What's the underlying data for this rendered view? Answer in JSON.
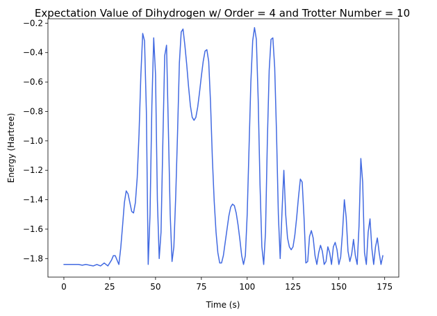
{
  "chart_data": {
    "type": "line",
    "title": "Expectation Value of Dihydrogen w/ Order = 4 and Trotter Number = 10",
    "xlabel": "Time (s)",
    "ylabel": "Energy (Hartree)",
    "xlim": [
      -8.7,
      182.7
    ],
    "ylim": [
      -1.926,
      -0.17
    ],
    "xticks": [
      0,
      25,
      50,
      75,
      100,
      125,
      150,
      175
    ],
    "xtick_labels": [
      "0",
      "25",
      "50",
      "75",
      "100",
      "125",
      "150",
      "175"
    ],
    "yticks": [
      -1.8,
      -1.6,
      -1.4,
      -1.2,
      -1.0,
      -0.8,
      -0.6,
      -0.4,
      -0.2
    ],
    "ytick_labels": [
      "−1.8",
      "−1.6",
      "−1.4",
      "−1.2",
      "−1.0",
      "−0.8",
      "−0.6",
      "−0.4",
      "−0.2"
    ],
    "grid": false,
    "series": [
      {
        "color": "#4169e1",
        "x": [
          0,
          5,
          8,
          10,
          12,
          14,
          16,
          18,
          20,
          22,
          24,
          26,
          27,
          28,
          29,
          30,
          31,
          32,
          33,
          34,
          35,
          36,
          37,
          38,
          39,
          40,
          41,
          42,
          43,
          44,
          45,
          46,
          47,
          48,
          49,
          50,
          51,
          52,
          53,
          54,
          55,
          56,
          57,
          58,
          59,
          60,
          61,
          62,
          63,
          64,
          65,
          66,
          67,
          68,
          69,
          70,
          71,
          72,
          73,
          74,
          75,
          76,
          77,
          78,
          79,
          80,
          81,
          82,
          83,
          84,
          85,
          86,
          87,
          88,
          89,
          90,
          91,
          92,
          93,
          94,
          95,
          96,
          97,
          98,
          99,
          100,
          101,
          102,
          103,
          104,
          105,
          106,
          107,
          108,
          109,
          110,
          111,
          112,
          113,
          114,
          115,
          116,
          117,
          118,
          119,
          120,
          121,
          122,
          123,
          124,
          125,
          126,
          127,
          128,
          129,
          130,
          131,
          132,
          133,
          134,
          135,
          136,
          137,
          138,
          139,
          140,
          141,
          142,
          143,
          144,
          145,
          146,
          147,
          148,
          149,
          150,
          151,
          152,
          153,
          154,
          155,
          156,
          157,
          158,
          159,
          160,
          161,
          162,
          163,
          164,
          165,
          166,
          167,
          168,
          169,
          170,
          171,
          172,
          173,
          174
        ],
        "y": [
          -1.84,
          -1.84,
          -1.84,
          -1.845,
          -1.84,
          -1.845,
          -1.85,
          -1.84,
          -1.85,
          -1.83,
          -1.85,
          -1.81,
          -1.78,
          -1.78,
          -1.81,
          -1.84,
          -1.73,
          -1.58,
          -1.42,
          -1.34,
          -1.36,
          -1.42,
          -1.48,
          -1.49,
          -1.42,
          -1.25,
          -0.95,
          -0.55,
          -0.27,
          -0.32,
          -0.8,
          -1.84,
          -1.5,
          -0.76,
          -0.3,
          -0.55,
          -1.4,
          -1.8,
          -1.62,
          -1.0,
          -0.42,
          -0.35,
          -0.92,
          -1.5,
          -1.82,
          -1.72,
          -1.38,
          -0.95,
          -0.47,
          -0.26,
          -0.24,
          -0.35,
          -0.48,
          -0.63,
          -0.76,
          -0.84,
          -0.86,
          -0.84,
          -0.77,
          -0.67,
          -0.56,
          -0.46,
          -0.39,
          -0.38,
          -0.46,
          -0.74,
          -1.12,
          -1.41,
          -1.62,
          -1.76,
          -1.83,
          -1.83,
          -1.78,
          -1.69,
          -1.6,
          -1.51,
          -1.45,
          -1.43,
          -1.44,
          -1.49,
          -1.57,
          -1.67,
          -1.78,
          -1.84,
          -1.78,
          -1.5,
          -1.05,
          -0.6,
          -0.32,
          -0.23,
          -0.31,
          -0.72,
          -1.3,
          -1.72,
          -1.84,
          -1.62,
          -1.0,
          -0.52,
          -0.31,
          -0.3,
          -0.5,
          -0.95,
          -1.5,
          -1.8,
          -1.48,
          -1.2,
          -1.5,
          -1.66,
          -1.72,
          -1.74,
          -1.72,
          -1.64,
          -1.52,
          -1.38,
          -1.26,
          -1.28,
          -1.52,
          -1.83,
          -1.82,
          -1.65,
          -1.61,
          -1.66,
          -1.78,
          -1.84,
          -1.76,
          -1.71,
          -1.75,
          -1.84,
          -1.82,
          -1.72,
          -1.76,
          -1.84,
          -1.72,
          -1.69,
          -1.74,
          -1.84,
          -1.79,
          -1.62,
          -1.4,
          -1.52,
          -1.75,
          -1.82,
          -1.77,
          -1.67,
          -1.78,
          -1.84,
          -1.58,
          -1.12,
          -1.28,
          -1.76,
          -1.84,
          -1.62,
          -1.53,
          -1.73,
          -1.84,
          -1.72,
          -1.66,
          -1.76,
          -1.84,
          -1.78
        ]
      }
    ]
  }
}
